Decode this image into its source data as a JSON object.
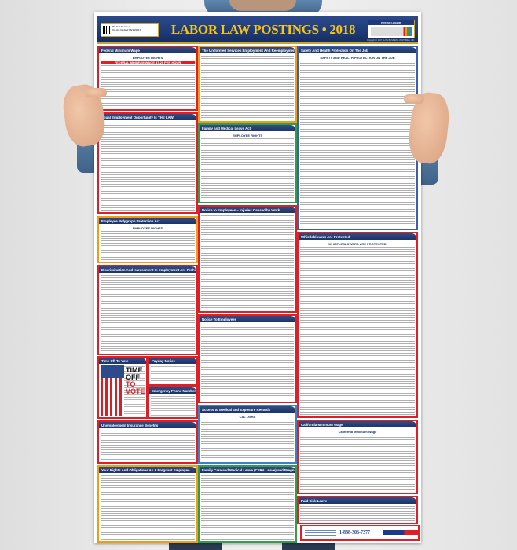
{
  "poster": {
    "title": "LABOR LAW POSTINGS • 2018",
    "product_label": "Product Number:",
    "product_number": "CA-A1 (revised 06/13/2017)",
    "legend_title": "POSTER LEGEND",
    "copyright": "Copyright © 2017 ELITE BUSINESS VENTURES, INC."
  },
  "sections": [
    {
      "title": "Federal Minimum Wage",
      "border": "#e21d24",
      "band": "EMPLOYEE RIGHTS",
      "band2": "FEDERAL MINIMUM WAGE  $7.25 PER HOUR"
    },
    {
      "title": "Equal Employment Opportunity Is THE LAW",
      "border": "#e21d24"
    },
    {
      "title": "Employee Polygraph Protection Act",
      "border": "#f39c12",
      "band": "EMPLOYEE RIGHTS"
    },
    {
      "title": "Discrimination And Harassment In Employment Are Prohibited By Law",
      "border": "#e21d24"
    },
    {
      "title": "Time Off To Vote",
      "border": "#e21d24",
      "vote1": "TIME OFF",
      "vote2": "TO VOTE"
    },
    {
      "title": "Payday Notice",
      "border": "#e21d24"
    },
    {
      "title": "Emergency Phone Numbers",
      "border": "#e21d24"
    },
    {
      "title": "Unemployment Insurance Benefits",
      "border": "#e21d24"
    },
    {
      "title": "Your Rights And Obligations As A Pregnant Employee",
      "border": "#f39c12"
    },
    {
      "title": "The Uniformed Services Employment And Reemployment Rights Act",
      "border": "#f39c12"
    },
    {
      "title": "Family and Medical Leave Act",
      "border": "#2e9e48",
      "band": "EMPLOYEE RIGHTS"
    },
    {
      "title": "Notice to Employees – Injuries Caused by Work",
      "border": "#e21d24"
    },
    {
      "title": "Notice To Employees",
      "border": "#e21d24"
    },
    {
      "title": "Access to Medical and Exposure Records",
      "border": "#3b82c4",
      "band": "CAL OSHA"
    },
    {
      "title": "Family Care and Medical Leave (CFRA Leave) and Pregnancy Disability Leave",
      "border": "#2e9e48"
    },
    {
      "title": "Safety And Health Protection On The Job",
      "border": "#3b5fb0",
      "band": "SAFETY AND HEALTH PROTECTION ON THE JOB"
    },
    {
      "title": "Whistleblowers Are Protected",
      "border": "#e21d24",
      "band": "WHISTLEBLOWERS ARE PROTECTED"
    },
    {
      "title": "California Minimum Wage",
      "border": "#e21d24",
      "band": "California Minimum Wage"
    },
    {
      "title": "Paid Sick Leave",
      "border": "#e21d24"
    }
  ],
  "footer": {
    "phone": "1-888-306-7377"
  }
}
